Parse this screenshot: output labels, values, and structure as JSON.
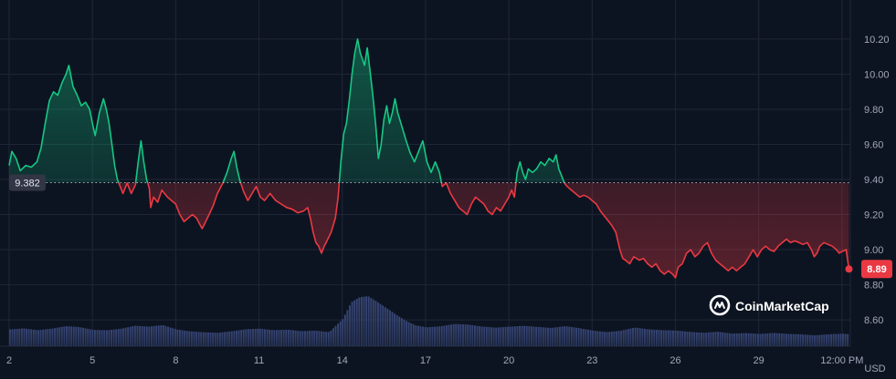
{
  "chart_data": {
    "type": "area",
    "currency": "USD",
    "baseline": {
      "value": 9.382,
      "label": "9.382"
    },
    "last": {
      "value": 8.89,
      "label": "8.89"
    },
    "ylim": [
      8.45,
      10.35
    ],
    "y_ticks": [
      {
        "value": 10.2,
        "label": "10.20"
      },
      {
        "value": 10.0,
        "label": "10.00"
      },
      {
        "value": 9.8,
        "label": "9.80"
      },
      {
        "value": 9.6,
        "label": "9.60"
      },
      {
        "value": 9.4,
        "label": "9.40"
      },
      {
        "value": 9.2,
        "label": "9.20"
      },
      {
        "value": 9.0,
        "label": "9.00"
      },
      {
        "value": 8.8,
        "label": "8.80"
      },
      {
        "value": 8.6,
        "label": "8.60"
      }
    ],
    "xlim": [
      0,
      30.3
    ],
    "x_ticks": [
      {
        "value": 0,
        "label": "2"
      },
      {
        "value": 3,
        "label": "5"
      },
      {
        "value": 6,
        "label": "8"
      },
      {
        "value": 9,
        "label": "11"
      },
      {
        "value": 12,
        "label": "14"
      },
      {
        "value": 15,
        "label": "17"
      },
      {
        "value": 18,
        "label": "20"
      },
      {
        "value": 21,
        "label": "23"
      },
      {
        "value": 24,
        "label": "26"
      },
      {
        "value": 27,
        "label": "29"
      },
      {
        "value": 30,
        "label": "12:00 PM"
      }
    ],
    "price": [
      [
        0,
        9.48
      ],
      [
        0.1,
        9.56
      ],
      [
        0.25,
        9.52
      ],
      [
        0.4,
        9.45
      ],
      [
        0.6,
        9.48
      ],
      [
        0.8,
        9.47
      ],
      [
        1.0,
        9.5
      ],
      [
        1.15,
        9.58
      ],
      [
        1.3,
        9.72
      ],
      [
        1.45,
        9.85
      ],
      [
        1.6,
        9.9
      ],
      [
        1.75,
        9.88
      ],
      [
        1.9,
        9.95
      ],
      [
        2.05,
        10.0
      ],
      [
        2.15,
        10.05
      ],
      [
        2.3,
        9.93
      ],
      [
        2.45,
        9.88
      ],
      [
        2.6,
        9.82
      ],
      [
        2.75,
        9.84
      ],
      [
        2.9,
        9.8
      ],
      [
        3.0,
        9.72
      ],
      [
        3.1,
        9.65
      ],
      [
        3.25,
        9.78
      ],
      [
        3.4,
        9.86
      ],
      [
        3.5,
        9.8
      ],
      [
        3.6,
        9.72
      ],
      [
        3.7,
        9.6
      ],
      [
        3.8,
        9.48
      ],
      [
        3.9,
        9.4
      ],
      [
        4.0,
        9.36
      ],
      [
        4.1,
        9.32
      ],
      [
        4.25,
        9.38
      ],
      [
        4.4,
        9.32
      ],
      [
        4.55,
        9.37
      ],
      [
        4.65,
        9.5
      ],
      [
        4.75,
        9.62
      ],
      [
        4.85,
        9.5
      ],
      [
        4.95,
        9.4
      ],
      [
        5.05,
        9.35
      ],
      [
        5.1,
        9.24
      ],
      [
        5.2,
        9.3
      ],
      [
        5.35,
        9.27
      ],
      [
        5.5,
        9.34
      ],
      [
        5.7,
        9.3
      ],
      [
        5.85,
        9.28
      ],
      [
        6.0,
        9.26
      ],
      [
        6.15,
        9.2
      ],
      [
        6.3,
        9.16
      ],
      [
        6.45,
        9.18
      ],
      [
        6.6,
        9.2
      ],
      [
        6.75,
        9.18
      ],
      [
        6.85,
        9.15
      ],
      [
        6.95,
        9.12
      ],
      [
        7.05,
        9.15
      ],
      [
        7.2,
        9.2
      ],
      [
        7.35,
        9.25
      ],
      [
        7.5,
        9.32
      ],
      [
        7.7,
        9.38
      ],
      [
        7.85,
        9.44
      ],
      [
        8.0,
        9.52
      ],
      [
        8.1,
        9.56
      ],
      [
        8.2,
        9.47
      ],
      [
        8.3,
        9.4
      ],
      [
        8.45,
        9.33
      ],
      [
        8.6,
        9.28
      ],
      [
        8.75,
        9.32
      ],
      [
        8.9,
        9.36
      ],
      [
        9.05,
        9.3
      ],
      [
        9.2,
        9.28
      ],
      [
        9.4,
        9.32
      ],
      [
        9.6,
        9.28
      ],
      [
        9.8,
        9.26
      ],
      [
        10.0,
        9.24
      ],
      [
        10.2,
        9.23
      ],
      [
        10.4,
        9.21
      ],
      [
        10.6,
        9.22
      ],
      [
        10.75,
        9.24
      ],
      [
        10.85,
        9.18
      ],
      [
        10.95,
        9.1
      ],
      [
        11.05,
        9.04
      ],
      [
        11.15,
        9.02
      ],
      [
        11.25,
        8.98
      ],
      [
        11.35,
        9.02
      ],
      [
        11.45,
        9.05
      ],
      [
        11.6,
        9.1
      ],
      [
        11.75,
        9.18
      ],
      [
        11.85,
        9.3
      ],
      [
        11.95,
        9.5
      ],
      [
        12.05,
        9.66
      ],
      [
        12.15,
        9.72
      ],
      [
        12.25,
        9.85
      ],
      [
        12.35,
        10.0
      ],
      [
        12.45,
        10.12
      ],
      [
        12.55,
        10.2
      ],
      [
        12.65,
        10.12
      ],
      [
        12.8,
        10.05
      ],
      [
        12.9,
        10.15
      ],
      [
        13.0,
        10.02
      ],
      [
        13.1,
        9.88
      ],
      [
        13.2,
        9.72
      ],
      [
        13.3,
        9.52
      ],
      [
        13.4,
        9.6
      ],
      [
        13.5,
        9.74
      ],
      [
        13.6,
        9.82
      ],
      [
        13.7,
        9.72
      ],
      [
        13.8,
        9.78
      ],
      [
        13.9,
        9.86
      ],
      [
        14.0,
        9.78
      ],
      [
        14.15,
        9.7
      ],
      [
        14.3,
        9.62
      ],
      [
        14.45,
        9.55
      ],
      [
        14.6,
        9.5
      ],
      [
        14.75,
        9.56
      ],
      [
        14.9,
        9.62
      ],
      [
        15.05,
        9.5
      ],
      [
        15.2,
        9.44
      ],
      [
        15.35,
        9.5
      ],
      [
        15.5,
        9.44
      ],
      [
        15.6,
        9.36
      ],
      [
        15.75,
        9.38
      ],
      [
        15.9,
        9.32
      ],
      [
        16.05,
        9.28
      ],
      [
        16.2,
        9.24
      ],
      [
        16.35,
        9.22
      ],
      [
        16.5,
        9.2
      ],
      [
        16.65,
        9.26
      ],
      [
        16.8,
        9.3
      ],
      [
        16.95,
        9.28
      ],
      [
        17.1,
        9.26
      ],
      [
        17.25,
        9.22
      ],
      [
        17.4,
        9.2
      ],
      [
        17.55,
        9.24
      ],
      [
        17.7,
        9.22
      ],
      [
        17.85,
        9.26
      ],
      [
        18.0,
        9.3
      ],
      [
        18.1,
        9.34
      ],
      [
        18.2,
        9.3
      ],
      [
        18.3,
        9.44
      ],
      [
        18.4,
        9.5
      ],
      [
        18.5,
        9.44
      ],
      [
        18.6,
        9.4
      ],
      [
        18.7,
        9.46
      ],
      [
        18.85,
        9.44
      ],
      [
        19.0,
        9.46
      ],
      [
        19.15,
        9.5
      ],
      [
        19.3,
        9.48
      ],
      [
        19.45,
        9.52
      ],
      [
        19.6,
        9.5
      ],
      [
        19.7,
        9.54
      ],
      [
        19.8,
        9.46
      ],
      [
        19.9,
        9.42
      ],
      [
        20.0,
        9.38
      ],
      [
        20.1,
        9.36
      ],
      [
        20.25,
        9.34
      ],
      [
        20.4,
        9.32
      ],
      [
        20.55,
        9.3
      ],
      [
        20.7,
        9.31
      ],
      [
        20.85,
        9.3
      ],
      [
        21.0,
        9.28
      ],
      [
        21.15,
        9.26
      ],
      [
        21.3,
        9.22
      ],
      [
        21.5,
        9.18
      ],
      [
        21.7,
        9.14
      ],
      [
        21.85,
        9.1
      ],
      [
        22.0,
        9.0
      ],
      [
        22.1,
        8.95
      ],
      [
        22.2,
        8.94
      ],
      [
        22.35,
        8.92
      ],
      [
        22.5,
        8.96
      ],
      [
        22.7,
        8.94
      ],
      [
        22.85,
        8.95
      ],
      [
        23.0,
        8.92
      ],
      [
        23.15,
        8.9
      ],
      [
        23.3,
        8.92
      ],
      [
        23.45,
        8.88
      ],
      [
        23.6,
        8.86
      ],
      [
        23.75,
        8.88
      ],
      [
        23.9,
        8.86
      ],
      [
        24.0,
        8.84
      ],
      [
        24.1,
        8.9
      ],
      [
        24.25,
        8.92
      ],
      [
        24.4,
        8.98
      ],
      [
        24.55,
        9.0
      ],
      [
        24.7,
        8.96
      ],
      [
        24.85,
        8.98
      ],
      [
        25.0,
        9.02
      ],
      [
        25.15,
        9.04
      ],
      [
        25.3,
        8.98
      ],
      [
        25.45,
        8.94
      ],
      [
        25.6,
        8.92
      ],
      [
        25.75,
        8.9
      ],
      [
        25.9,
        8.88
      ],
      [
        26.05,
        8.9
      ],
      [
        26.2,
        8.88
      ],
      [
        26.35,
        8.9
      ],
      [
        26.5,
        8.92
      ],
      [
        26.65,
        8.96
      ],
      [
        26.8,
        9.0
      ],
      [
        26.95,
        8.96
      ],
      [
        27.1,
        9.0
      ],
      [
        27.25,
        9.02
      ],
      [
        27.4,
        9.0
      ],
      [
        27.55,
        8.99
      ],
      [
        27.7,
        9.02
      ],
      [
        27.85,
        9.04
      ],
      [
        28.0,
        9.06
      ],
      [
        28.15,
        9.04
      ],
      [
        28.3,
        9.05
      ],
      [
        28.45,
        9.04
      ],
      [
        28.6,
        9.03
      ],
      [
        28.75,
        9.04
      ],
      [
        28.9,
        9.0
      ],
      [
        29.0,
        8.96
      ],
      [
        29.1,
        8.98
      ],
      [
        29.2,
        9.02
      ],
      [
        29.35,
        9.04
      ],
      [
        29.5,
        9.03
      ],
      [
        29.65,
        9.02
      ],
      [
        29.8,
        9.0
      ],
      [
        29.9,
        8.98
      ],
      [
        30.0,
        8.99
      ],
      [
        30.15,
        9.0
      ],
      [
        30.25,
        8.89
      ]
    ],
    "volume": [
      [
        0,
        0.36
      ],
      [
        0.5,
        0.38
      ],
      [
        1.0,
        0.34
      ],
      [
        1.5,
        0.37
      ],
      [
        2.0,
        0.42
      ],
      [
        2.5,
        0.4
      ],
      [
        3.0,
        0.34
      ],
      [
        3.5,
        0.33
      ],
      [
        4.0,
        0.36
      ],
      [
        4.5,
        0.42
      ],
      [
        5.0,
        0.4
      ],
      [
        5.5,
        0.43
      ],
      [
        6.0,
        0.34
      ],
      [
        6.5,
        0.3
      ],
      [
        7.0,
        0.28
      ],
      [
        7.5,
        0.27
      ],
      [
        8.0,
        0.3
      ],
      [
        8.5,
        0.34
      ],
      [
        9.0,
        0.35
      ],
      [
        9.5,
        0.32
      ],
      [
        10.0,
        0.33
      ],
      [
        10.5,
        0.3
      ],
      [
        11.0,
        0.31
      ],
      [
        11.5,
        0.28
      ],
      [
        12.0,
        0.55
      ],
      [
        12.3,
        0.88
      ],
      [
        12.6,
        0.98
      ],
      [
        12.9,
        1.0
      ],
      [
        13.2,
        0.9
      ],
      [
        13.6,
        0.75
      ],
      [
        14.0,
        0.6
      ],
      [
        14.3,
        0.5
      ],
      [
        14.6,
        0.42
      ],
      [
        15.0,
        0.38
      ],
      [
        15.5,
        0.4
      ],
      [
        16.0,
        0.45
      ],
      [
        16.5,
        0.44
      ],
      [
        17.0,
        0.4
      ],
      [
        17.5,
        0.38
      ],
      [
        18.0,
        0.4
      ],
      [
        18.5,
        0.42
      ],
      [
        19.0,
        0.4
      ],
      [
        19.5,
        0.38
      ],
      [
        20.0,
        0.42
      ],
      [
        20.5,
        0.38
      ],
      [
        21.0,
        0.33
      ],
      [
        21.5,
        0.3
      ],
      [
        22.0,
        0.33
      ],
      [
        22.5,
        0.4
      ],
      [
        23.0,
        0.36
      ],
      [
        23.5,
        0.34
      ],
      [
        24.0,
        0.33
      ],
      [
        24.5,
        0.3
      ],
      [
        25.0,
        0.28
      ],
      [
        25.5,
        0.3
      ],
      [
        26.0,
        0.26
      ],
      [
        26.5,
        0.27
      ],
      [
        27.0,
        0.25
      ],
      [
        27.5,
        0.27
      ],
      [
        28.0,
        0.25
      ],
      [
        28.5,
        0.24
      ],
      [
        29.0,
        0.22
      ],
      [
        29.5,
        0.24
      ],
      [
        30.0,
        0.25
      ],
      [
        30.25,
        0.24
      ]
    ],
    "colors": {
      "up": "#16c784",
      "down": "#ea3943",
      "grid": "#1f2637",
      "axis_text": "#a1a7bb",
      "volume": "#3b4a7d",
      "baseline": "#cfd6e4",
      "background": "#0d1421",
      "badge_bg": "#323546"
    }
  },
  "watermark": {
    "text": "CoinMarketCap",
    "icon": "coinmarketcap-logo-icon"
  }
}
